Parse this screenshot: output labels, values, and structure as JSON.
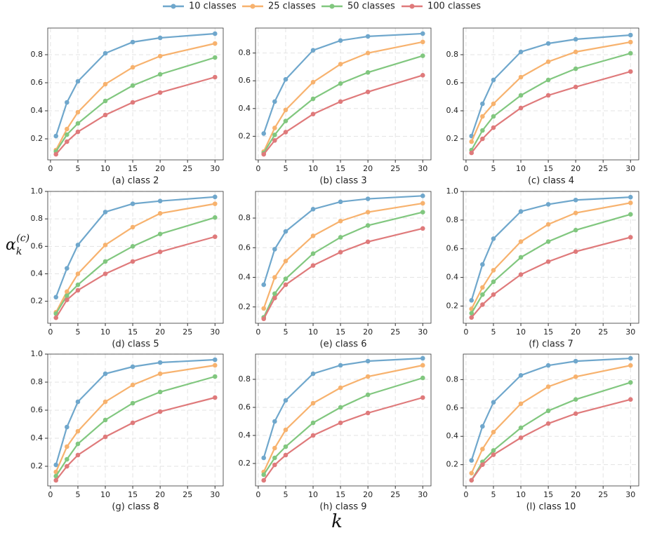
{
  "figure": {
    "xlabel": "k",
    "ylabel": {
      "symbol": "α",
      "subscript": "k",
      "superscript": "(c)"
    }
  },
  "chart_data": [
    {
      "type": "line",
      "title": "(a) class 2",
      "x": [
        1,
        3,
        5,
        10,
        15,
        20,
        30
      ],
      "xlim": [
        -0.5,
        31.5
      ],
      "xticks": [
        0,
        5,
        10,
        15,
        20,
        25,
        30
      ],
      "ylim": [
        0.05,
        0.99
      ],
      "yticks": [
        0.2,
        0.4,
        0.6,
        0.8
      ],
      "grid": true,
      "series": [
        {
          "name": "10 classes",
          "color": "#6fa7cc",
          "values": [
            0.22,
            0.46,
            0.61,
            0.81,
            0.89,
            0.92,
            0.95
          ]
        },
        {
          "name": "25 classes",
          "color": "#f7b26e",
          "values": [
            0.12,
            0.27,
            0.39,
            0.59,
            0.71,
            0.79,
            0.88
          ]
        },
        {
          "name": "50 classes",
          "color": "#81c77f",
          "values": [
            0.11,
            0.23,
            0.31,
            0.47,
            0.58,
            0.66,
            0.78
          ]
        },
        {
          "name": "100 classes",
          "color": "#df7a7b",
          "values": [
            0.09,
            0.18,
            0.25,
            0.37,
            0.46,
            0.53,
            0.64
          ]
        }
      ]
    },
    {
      "type": "line",
      "title": "(b) class 3",
      "x": [
        1,
        3,
        5,
        10,
        15,
        20,
        30
      ],
      "xlim": [
        -0.5,
        31.5
      ],
      "xticks": [
        0,
        5,
        10,
        15,
        20,
        25,
        30
      ],
      "ylim": [
        0.03,
        0.98
      ],
      "yticks": [
        0.2,
        0.4,
        0.6,
        0.8
      ],
      "grid": true,
      "series": [
        {
          "name": "10 classes",
          "color": "#6fa7cc",
          "values": [
            0.22,
            0.45,
            0.61,
            0.82,
            0.89,
            0.92,
            0.94
          ]
        },
        {
          "name": "25 classes",
          "color": "#f7b26e",
          "values": [
            0.09,
            0.26,
            0.39,
            0.59,
            0.72,
            0.8,
            0.88
          ]
        },
        {
          "name": "50 classes",
          "color": "#81c77f",
          "values": [
            0.08,
            0.21,
            0.31,
            0.47,
            0.58,
            0.66,
            0.78
          ]
        },
        {
          "name": "100 classes",
          "color": "#df7a7b",
          "values": [
            0.07,
            0.17,
            0.23,
            0.36,
            0.45,
            0.52,
            0.64
          ]
        }
      ]
    },
    {
      "type": "line",
      "title": "(c) class 4",
      "x": [
        1,
        3,
        5,
        10,
        15,
        20,
        30
      ],
      "xlim": [
        -0.5,
        31.5
      ],
      "xticks": [
        0,
        5,
        10,
        15,
        20,
        25,
        30
      ],
      "ylim": [
        0.05,
        0.99
      ],
      "yticks": [
        0.2,
        0.4,
        0.6,
        0.8
      ],
      "grid": true,
      "series": [
        {
          "name": "10 classes",
          "color": "#6fa7cc",
          "values": [
            0.22,
            0.45,
            0.62,
            0.82,
            0.88,
            0.91,
            0.94
          ]
        },
        {
          "name": "25 classes",
          "color": "#f7b26e",
          "values": [
            0.18,
            0.36,
            0.45,
            0.64,
            0.75,
            0.82,
            0.89
          ]
        },
        {
          "name": "50 classes",
          "color": "#81c77f",
          "values": [
            0.12,
            0.26,
            0.36,
            0.51,
            0.62,
            0.7,
            0.81
          ]
        },
        {
          "name": "100 classes",
          "color": "#df7a7b",
          "values": [
            0.1,
            0.2,
            0.28,
            0.42,
            0.51,
            0.57,
            0.68
          ]
        }
      ]
    },
    {
      "type": "line",
      "title": "(d) class 5",
      "x": [
        1,
        3,
        5,
        10,
        15,
        20,
        30
      ],
      "xlim": [
        -0.5,
        31.5
      ],
      "xticks": [
        0,
        5,
        10,
        15,
        20,
        25,
        30
      ],
      "ylim": [
        0.04,
        1.0
      ],
      "yticks": [
        0.2,
        0.4,
        0.6,
        0.8,
        {
          "value": 1.0,
          "label": "1.0"
        }
      ],
      "grid": true,
      "series": [
        {
          "name": "10 classes",
          "color": "#6fa7cc",
          "values": [
            0.23,
            0.44,
            0.61,
            0.85,
            0.91,
            0.93,
            0.96
          ]
        },
        {
          "name": "25 classes",
          "color": "#f7b26e",
          "values": [
            0.12,
            0.27,
            0.4,
            0.61,
            0.74,
            0.84,
            0.91
          ]
        },
        {
          "name": "50 classes",
          "color": "#81c77f",
          "values": [
            0.11,
            0.24,
            0.32,
            0.49,
            0.6,
            0.69,
            0.81
          ]
        },
        {
          "name": "100 classes",
          "color": "#df7a7b",
          "values": [
            0.08,
            0.21,
            0.28,
            0.4,
            0.49,
            0.56,
            0.67
          ]
        }
      ]
    },
    {
      "type": "line",
      "title": "(e) class 6",
      "x": [
        1,
        3,
        5,
        10,
        15,
        20,
        30
      ],
      "xlim": [
        -0.5,
        31.5
      ],
      "xticks": [
        0,
        5,
        10,
        15,
        20,
        25,
        30
      ],
      "ylim": [
        0.09,
        0.98
      ],
      "yticks": [
        0.2,
        0.4,
        0.6,
        0.8
      ],
      "grid": true,
      "series": [
        {
          "name": "10 classes",
          "color": "#6fa7cc",
          "values": [
            0.35,
            0.59,
            0.71,
            0.86,
            0.91,
            0.93,
            0.95
          ]
        },
        {
          "name": "25 classes",
          "color": "#f7b26e",
          "values": [
            0.19,
            0.4,
            0.51,
            0.68,
            0.78,
            0.84,
            0.9
          ]
        },
        {
          "name": "50 classes",
          "color": "#81c77f",
          "values": [
            0.13,
            0.29,
            0.39,
            0.56,
            0.67,
            0.75,
            0.84
          ]
        },
        {
          "name": "100 classes",
          "color": "#df7a7b",
          "values": [
            0.12,
            0.26,
            0.35,
            0.48,
            0.57,
            0.64,
            0.73
          ]
        }
      ]
    },
    {
      "type": "line",
      "title": "(f) class 7",
      "x": [
        1,
        3,
        5,
        10,
        15,
        20,
        30
      ],
      "xlim": [
        -0.5,
        31.5
      ],
      "xticks": [
        0,
        5,
        10,
        15,
        20,
        25,
        30
      ],
      "ylim": [
        0.08,
        1.0
      ],
      "yticks": [
        0.2,
        0.4,
        0.6,
        0.8,
        {
          "value": 1.0,
          "label": "1.0"
        }
      ],
      "grid": true,
      "series": [
        {
          "name": "10 classes",
          "color": "#6fa7cc",
          "values": [
            0.24,
            0.49,
            0.67,
            0.86,
            0.91,
            0.94,
            0.96
          ]
        },
        {
          "name": "25 classes",
          "color": "#f7b26e",
          "values": [
            0.18,
            0.33,
            0.45,
            0.65,
            0.77,
            0.85,
            0.92
          ]
        },
        {
          "name": "50 classes",
          "color": "#81c77f",
          "values": [
            0.15,
            0.28,
            0.37,
            0.54,
            0.65,
            0.73,
            0.84
          ]
        },
        {
          "name": "100 classes",
          "color": "#df7a7b",
          "values": [
            0.12,
            0.21,
            0.28,
            0.42,
            0.51,
            0.58,
            0.68
          ]
        }
      ]
    },
    {
      "type": "line",
      "title": "(g) class 8",
      "x": [
        1,
        3,
        5,
        10,
        15,
        20,
        30
      ],
      "xlim": [
        -0.5,
        31.5
      ],
      "xticks": [
        0,
        5,
        10,
        15,
        20,
        25,
        30
      ],
      "ylim": [
        0.06,
        1.0
      ],
      "yticks": [
        0.2,
        0.4,
        0.6,
        0.8,
        {
          "value": 1.0,
          "label": "1.0"
        }
      ],
      "grid": true,
      "series": [
        {
          "name": "10 classes",
          "color": "#6fa7cc",
          "values": [
            0.21,
            0.48,
            0.66,
            0.86,
            0.91,
            0.94,
            0.96
          ]
        },
        {
          "name": "25 classes",
          "color": "#f7b26e",
          "values": [
            0.16,
            0.34,
            0.45,
            0.66,
            0.78,
            0.86,
            0.92
          ]
        },
        {
          "name": "50 classes",
          "color": "#81c77f",
          "values": [
            0.13,
            0.25,
            0.36,
            0.53,
            0.65,
            0.73,
            0.84
          ]
        },
        {
          "name": "100 classes",
          "color": "#df7a7b",
          "values": [
            0.1,
            0.2,
            0.28,
            0.41,
            0.51,
            0.59,
            0.69
          ]
        }
      ]
    },
    {
      "type": "line",
      "title": "(h) class 9",
      "x": [
        1,
        3,
        5,
        10,
        15,
        20,
        30
      ],
      "xlim": [
        -0.5,
        31.5
      ],
      "xticks": [
        0,
        5,
        10,
        15,
        20,
        25,
        30
      ],
      "ylim": [
        0.04,
        0.98
      ],
      "yticks": [
        0.2,
        0.4,
        0.6,
        0.8
      ],
      "grid": true,
      "series": [
        {
          "name": "10 classes",
          "color": "#6fa7cc",
          "values": [
            0.24,
            0.5,
            0.65,
            0.84,
            0.9,
            0.93,
            0.95
          ]
        },
        {
          "name": "25 classes",
          "color": "#f7b26e",
          "values": [
            0.14,
            0.31,
            0.44,
            0.63,
            0.74,
            0.82,
            0.9
          ]
        },
        {
          "name": "50 classes",
          "color": "#81c77f",
          "values": [
            0.12,
            0.24,
            0.32,
            0.49,
            0.6,
            0.69,
            0.81
          ]
        },
        {
          "name": "100 classes",
          "color": "#df7a7b",
          "values": [
            0.08,
            0.19,
            0.26,
            0.4,
            0.49,
            0.56,
            0.67
          ]
        }
      ]
    },
    {
      "type": "line",
      "title": "(l) class 10",
      "x": [
        1,
        3,
        5,
        10,
        15,
        20,
        30
      ],
      "xlim": [
        -0.5,
        31.5
      ],
      "xticks": [
        0,
        5,
        10,
        15,
        20,
        25,
        30
      ],
      "ylim": [
        0.05,
        0.98
      ],
      "yticks": [
        0.2,
        0.4,
        0.6,
        0.8
      ],
      "grid": true,
      "series": [
        {
          "name": "10 classes",
          "color": "#6fa7cc",
          "values": [
            0.23,
            0.47,
            0.64,
            0.83,
            0.9,
            0.93,
            0.95
          ]
        },
        {
          "name": "25 classes",
          "color": "#f7b26e",
          "values": [
            0.14,
            0.31,
            0.43,
            0.63,
            0.75,
            0.82,
            0.9
          ]
        },
        {
          "name": "50 classes",
          "color": "#81c77f",
          "values": [
            0.09,
            0.22,
            0.3,
            0.46,
            0.58,
            0.66,
            0.78
          ]
        },
        {
          "name": "100 classes",
          "color": "#df7a7b",
          "values": [
            0.09,
            0.2,
            0.27,
            0.39,
            0.49,
            0.56,
            0.66
          ]
        }
      ]
    }
  ]
}
